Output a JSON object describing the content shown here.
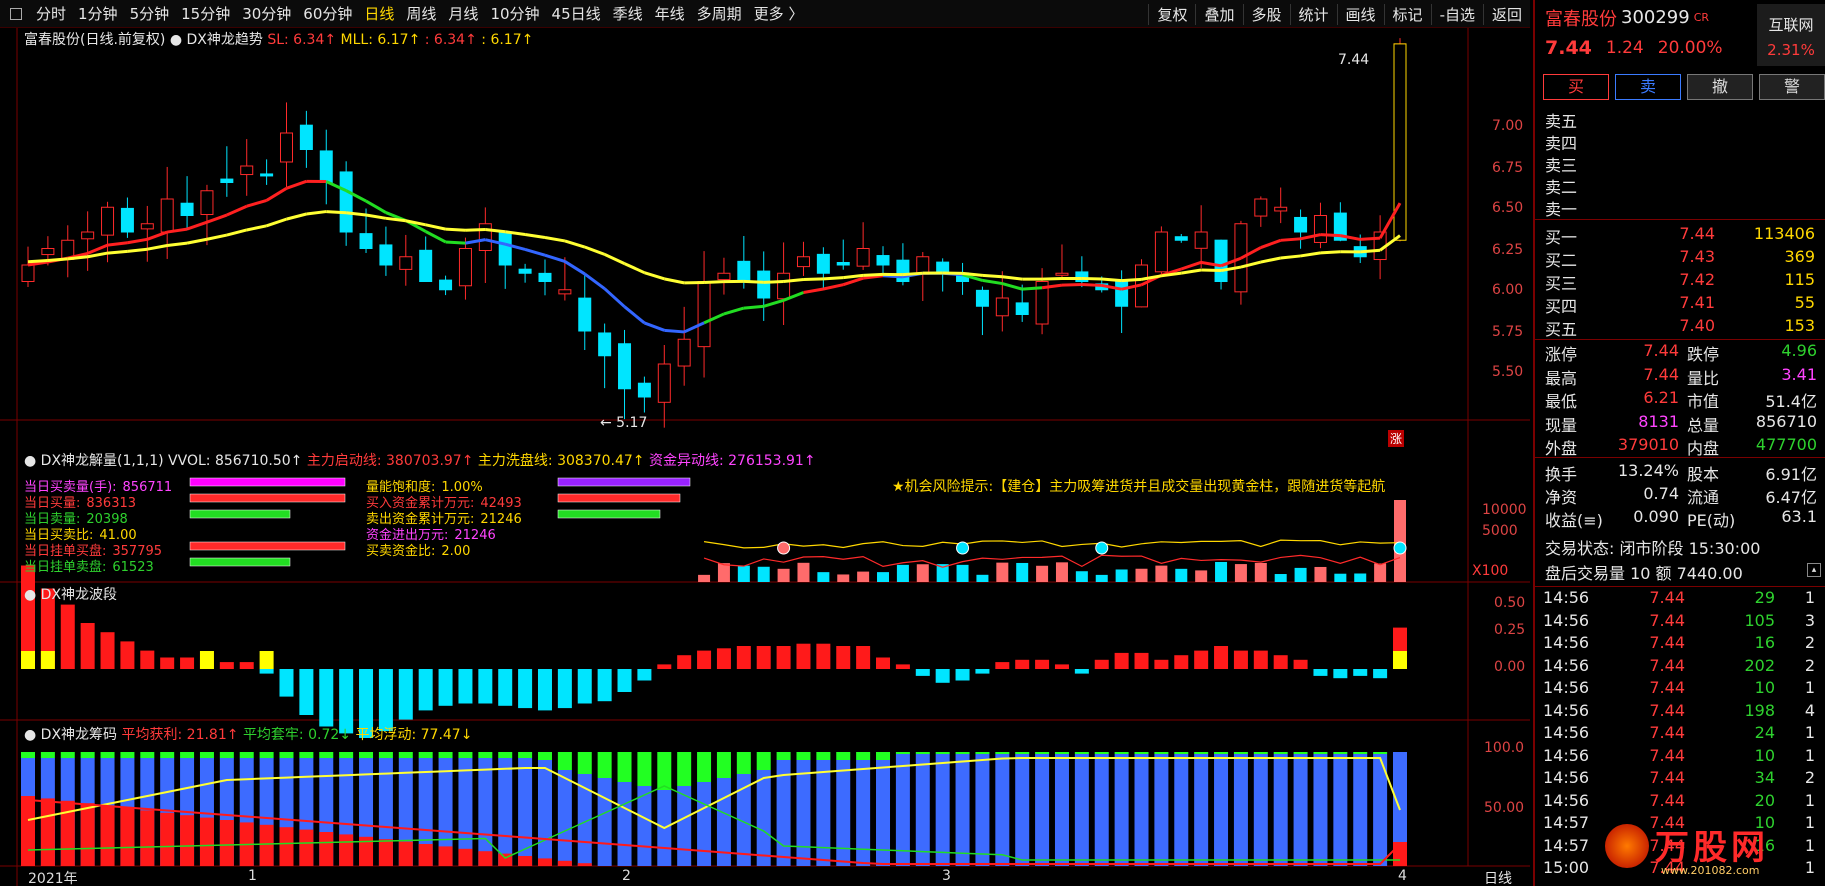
{
  "periods": [
    "分时",
    "1分钟",
    "5分钟",
    "15分钟",
    "30分钟",
    "60分钟",
    "日线",
    "周线",
    "月线",
    "10分钟",
    "45日线",
    "季线",
    "年线",
    "多周期",
    "更多 〉"
  ],
  "active_period": "日线",
  "tools": [
    "复权",
    "叠加",
    "多股",
    "统计",
    "画线",
    "标记",
    "-自选",
    "返回"
  ],
  "main": {
    "stock": "富春股份(日线.前复权)",
    "indicator": "DX神龙趋势",
    "sl": "SL: 6.34↑",
    "mll": "MLL: 6.17↑",
    "v3": ": 6.34↑",
    "v4": ": 6.17↑",
    "high_label": "7.44",
    "low_label": "← 5.17",
    "zhang": "涨",
    "y_ticks": [
      "7.00",
      "6.75",
      "6.50",
      "6.25",
      "6.00",
      "5.75",
      "5.50"
    ]
  },
  "vol": {
    "title": "DX神龙解量(1,1,1)",
    "vvol": "VVOL: 856710.50↑",
    "p1": "主力启动线: 380703.97↑",
    "p2": "主力洗盘线: 308370.47↑",
    "p3": "资金异动线: 276153.91↑",
    "hint": "★机会风险提示:【建仓】主力吸筹进货并且成交量出现黄金柱，跟随进货等起航",
    "y_ticks": [
      "10000",
      "5000"
    ],
    "x100": "X100",
    "left": [
      {
        "k": "当日买卖量(手):",
        "v": "856711",
        "c": "m"
      },
      {
        "k": "当日买量:",
        "v": "836313",
        "c": "r"
      },
      {
        "k": "当日卖量:",
        "v": "20398",
        "c": "g"
      },
      {
        "k": "当日买卖比:",
        "v": "41.00",
        "c": "y"
      },
      {
        "k": "当日挂单买盘:",
        "v": "357795",
        "c": "r"
      },
      {
        "k": "当日挂单卖盘:",
        "v": "61523",
        "c": "g"
      }
    ],
    "mid": [
      {
        "k": "量能饱和度:",
        "v": "1.00%",
        "c": "y"
      },
      {
        "k": "买入资金累计万元:",
        "v": "42493",
        "c": "r"
      },
      {
        "k": "卖出资金累计万元:",
        "v": "21246",
        "c": "y"
      },
      {
        "k": "资金进出万元:",
        "v": "21246",
        "c": "m"
      },
      {
        "k": "买卖资金比:",
        "v": "2.00",
        "c": "y"
      }
    ]
  },
  "wave": {
    "title": "DX神龙波段",
    "y_ticks": [
      "0.50",
      "0.25",
      "0.00"
    ]
  },
  "chip": {
    "title": "DX神龙筹码",
    "a": "平均获利: 21.81↑",
    "b": "平均套牢: 0.72↓",
    "c": "平均浮动: 77.47↓",
    "y_ticks": [
      "100.0",
      "50.00"
    ]
  },
  "xaxis": [
    "2021年",
    "1",
    "2",
    "3",
    "4"
  ],
  "xaxis_right": "日线",
  "quote": {
    "name": "富春股份",
    "code": "300299",
    "badge": "CR",
    "price": "7.44",
    "change": "1.24",
    "pct": "20.00%",
    "sector": "互联网",
    "sector_pct": "2.31%",
    "buttons": [
      "买",
      "卖",
      "撤",
      "警"
    ],
    "asks": [
      "卖五",
      "卖四",
      "卖三",
      "卖二",
      "卖一"
    ],
    "bids": [
      {
        "k": "买一",
        "p": "7.44",
        "v": "113406"
      },
      {
        "k": "买二",
        "p": "7.43",
        "v": "369"
      },
      {
        "k": "买三",
        "p": "7.42",
        "v": "115"
      },
      {
        "k": "买四",
        "p": "7.41",
        "v": "55"
      },
      {
        "k": "买五",
        "p": "7.40",
        "v": "153"
      }
    ],
    "stats": [
      [
        "涨停",
        "7.44",
        "r",
        "跌停",
        "4.96",
        "g"
      ],
      [
        "最高",
        "7.44",
        "r",
        "量比",
        "3.41",
        "m"
      ],
      [
        "最低",
        "6.21",
        "r",
        "市值",
        "51.4亿",
        "w"
      ],
      [
        "现量",
        "8131",
        "m",
        "总量",
        "856710",
        "w"
      ],
      [
        "外盘",
        "379010",
        "r",
        "内盘",
        "477700",
        "g"
      ]
    ],
    "stats2": [
      [
        "换手",
        "13.24%",
        "股本",
        "6.91亿"
      ],
      [
        "净资",
        "0.74",
        "流通",
        "6.47亿"
      ],
      [
        "收益(≡)",
        "0.090",
        "PE(动)",
        "63.1"
      ]
    ],
    "status": "交易状态: 闭市阶段 15:30:00",
    "after": "盘后交易量 10 额 7440.00",
    "ticks": [
      [
        "14:56",
        "7.44",
        "29",
        "1"
      ],
      [
        "14:56",
        "7.44",
        "105",
        "3"
      ],
      [
        "14:56",
        "7.44",
        "16",
        "2"
      ],
      [
        "14:56",
        "7.44",
        "202",
        "2"
      ],
      [
        "14:56",
        "7.44",
        "10",
        "1"
      ],
      [
        "14:56",
        "7.44",
        "198",
        "4"
      ],
      [
        "14:56",
        "7.44",
        "24",
        "1"
      ],
      [
        "14:56",
        "7.44",
        "10",
        "1"
      ],
      [
        "14:56",
        "7.44",
        "34",
        "2"
      ],
      [
        "14:56",
        "7.44",
        "20",
        "1"
      ],
      [
        "14:57",
        "7.44",
        "10",
        "1"
      ],
      [
        "14:57",
        "7.44",
        "16",
        "1"
      ],
      [
        "15:00",
        "7.44",
        "",
        "1"
      ]
    ],
    "watermark": "万股网",
    "watermark_url": "www.201082.com"
  }
}
